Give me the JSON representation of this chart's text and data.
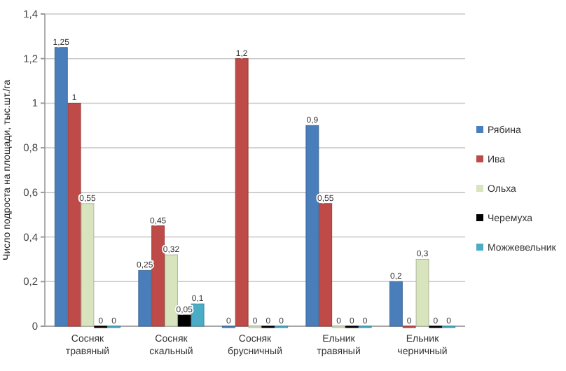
{
  "chart_data": {
    "type": "bar",
    "ylabel": "Число подроста на площади, тыс.шт./га",
    "categories": [
      "Сосняк травяный",
      "Сосняк скальный",
      "Сосняк брусничный",
      "Ельник травяный",
      "Ельник черничный"
    ],
    "series": [
      {
        "name": "Рябина",
        "color": "#4a7ebb",
        "values": [
          1.25,
          0.25,
          0,
          0.9,
          0.2
        ],
        "value_labels": [
          "1,25",
          "0,25",
          "0",
          "0,9",
          "0,2"
        ]
      },
      {
        "name": "Ива",
        "color": "#be4b48",
        "values": [
          1,
          0.45,
          1.2,
          0.55,
          0
        ],
        "value_labels": [
          "1",
          "0,45",
          "1,2",
          "0,55",
          "0"
        ]
      },
      {
        "name": "Ольха",
        "color": "#d7e4bd",
        "values": [
          0.55,
          0.32,
          0,
          0,
          0.3
        ],
        "value_labels": [
          "0,55",
          "0,32",
          "0",
          "0",
          "0,3"
        ]
      },
      {
        "name": "Черемуха",
        "color": "#000000",
        "values": [
          0,
          0.05,
          0,
          0,
          0
        ],
        "value_labels": [
          "0",
          "0,05",
          "0",
          "0",
          "0"
        ]
      },
      {
        "name": "Можжевельник",
        "color": "#4bacc6",
        "values": [
          0,
          0.1,
          0,
          0,
          0
        ],
        "value_labels": [
          "0",
          "0,1",
          "0",
          "0",
          "0"
        ]
      }
    ],
    "ylim": [
      0,
      1.4
    ],
    "yticks": [
      0,
      {
        "value": 0.2,
        "label": "0,2"
      },
      {
        "value": 0.4,
        "label": "0,4"
      },
      {
        "value": 0.6,
        "label": "0,6"
      },
      {
        "value": 0.8,
        "label": "0,8"
      },
      1,
      {
        "value": 1.2,
        "label": "1,2"
      },
      {
        "value": 1.4,
        "label": "1,4"
      }
    ],
    "grid": "y",
    "legend": "right"
  }
}
